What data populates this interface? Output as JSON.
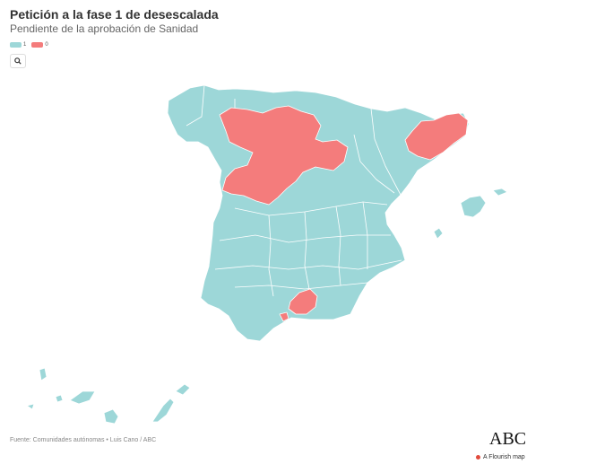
{
  "header": {
    "title": "Petición a la fase 1 de desescalada",
    "subtitle": "Pendiente de la aprobación de Sanidad"
  },
  "legend": {
    "items": [
      {
        "label": "1",
        "color": "#9dd7d8"
      },
      {
        "label": "0",
        "color": "#f47c7c"
      }
    ]
  },
  "controls": {
    "search_icon": "search-icon"
  },
  "map": {
    "colors": {
      "phase1": "#9dd7d8",
      "pending": "#f47c7c",
      "border": "#ffffff"
    }
  },
  "footer": {
    "source": "Fuente: Comunidades autónomas • Luis Cano / ABC",
    "logo": "ABC",
    "credit": "A Flourish map"
  }
}
